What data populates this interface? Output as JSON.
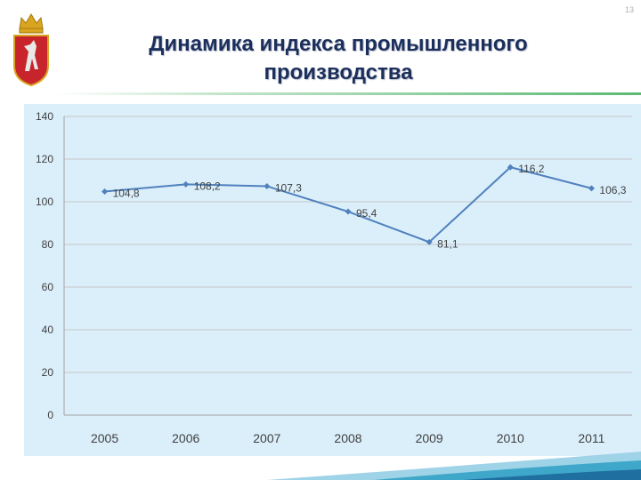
{
  "page_number": "13",
  "title": {
    "line1": "Динамика индекса промышленного",
    "line2": "производства"
  },
  "colors": {
    "series": "#4f81bd",
    "plot_background": "#dbeffb",
    "title": "#1c2f5c"
  },
  "chart_data": {
    "type": "line",
    "title": "Динамика индекса промышленного производства",
    "xlabel": "",
    "ylabel": "",
    "categories": [
      "2005",
      "2006",
      "2007",
      "2008",
      "2009",
      "2010",
      "2011"
    ],
    "series": [
      {
        "values": [
          104.8,
          108.2,
          107.3,
          95.4,
          81.1,
          116.2,
          106.3
        ],
        "labels": [
          "104,8",
          "108,2",
          "107,3",
          "95,4",
          "81,1",
          "116,2",
          "106,3"
        ]
      }
    ],
    "ylim": [
      0,
      140
    ],
    "yticks": [
      0,
      20,
      40,
      60,
      80,
      100,
      120,
      140
    ],
    "grid": true,
    "legend": "none"
  }
}
